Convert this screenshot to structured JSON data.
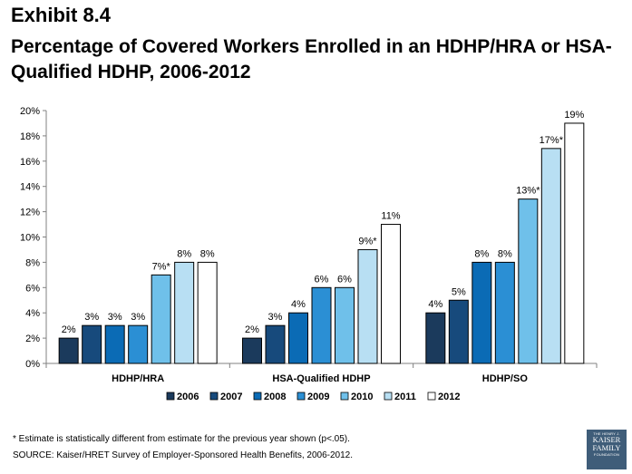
{
  "header": {
    "exhibit": "Exhibit 8.4",
    "title": "Percentage of Covered Workers Enrolled in an HDHP/HRA or HSA-Qualified HDHP, 2006-2012"
  },
  "chart_data": {
    "type": "bar",
    "categories": [
      "HDHP/HRA",
      "HSA-Qualified HDHP",
      "HDHP/SO"
    ],
    "series": [
      {
        "name": "2006",
        "color": "#1b3a5c",
        "values": [
          2,
          2,
          4
        ],
        "labels": [
          "2%",
          "2%",
          "4%"
        ]
      },
      {
        "name": "2007",
        "color": "#174a7c",
        "values": [
          3,
          3,
          5
        ],
        "labels": [
          "3%",
          "3%",
          "5%"
        ]
      },
      {
        "name": "2008",
        "color": "#0b6bb5",
        "values": [
          3,
          4,
          8
        ],
        "labels": [
          "3%",
          "4%",
          "8%"
        ]
      },
      {
        "name": "2009",
        "color": "#2b8fd4",
        "values": [
          3,
          6,
          8
        ],
        "labels": [
          "3%",
          "6%",
          "8%"
        ]
      },
      {
        "name": "2010",
        "color": "#6fc0ea",
        "values": [
          7,
          6,
          13
        ],
        "labels": [
          "7%*",
          "6%",
          "13%*"
        ]
      },
      {
        "name": "2011",
        "color": "#b8dff3",
        "values": [
          8,
          9,
          17
        ],
        "labels": [
          "8%",
          "9%*",
          "17%*"
        ]
      },
      {
        "name": "2012",
        "color": "#ffffff",
        "values": [
          8,
          11,
          19
        ],
        "labels": [
          "8%",
          "11%",
          "19%"
        ]
      }
    ],
    "yticks": [
      "0%",
      "2%",
      "4%",
      "6%",
      "8%",
      "10%",
      "12%",
      "14%",
      "16%",
      "18%",
      "20%"
    ],
    "ylim": [
      0,
      20
    ],
    "grid": false,
    "legend_position": "bottom"
  },
  "footer": {
    "footnote": "* Estimate is statistically different from estimate for the previous year shown (p<.05).",
    "source": "SOURCE:  Kaiser/HRET Survey of Employer-Sponsored Health Benefits, 2006-2012.",
    "logo": {
      "line1": "THE HENRY J.",
      "line2": "KAISER",
      "line3": "FAMILY",
      "line4": "FOUNDATION"
    }
  }
}
